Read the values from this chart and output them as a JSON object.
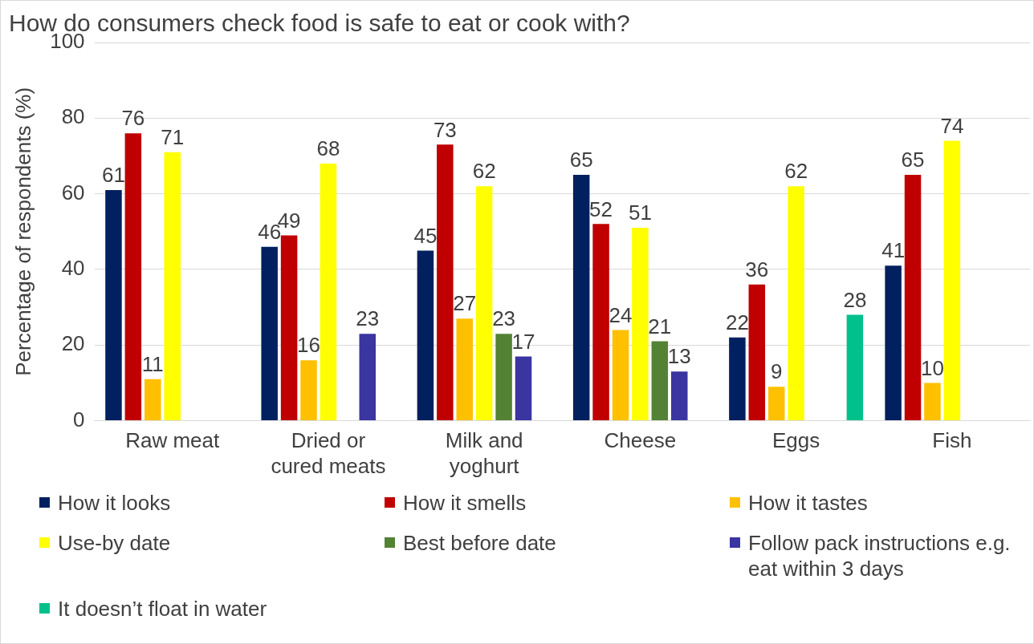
{
  "chart_data": {
    "type": "bar",
    "title": "How do consumers check food is safe to eat or cook with?",
    "ylabel": "Percentage of respondents (%)",
    "categories": [
      "Raw meat",
      "Dried or cured meats",
      "Milk and yoghurt",
      "Cheese",
      "Eggs",
      "Fish"
    ],
    "series": [
      {
        "name": "How it looks",
        "color": "#002060",
        "values": [
          61,
          46,
          45,
          65,
          22,
          41
        ]
      },
      {
        "name": "How it smells",
        "color": "#c00000",
        "values": [
          76,
          49,
          73,
          52,
          36,
          65
        ]
      },
      {
        "name": "How it tastes",
        "color": "#ffc000",
        "values": [
          11,
          16,
          27,
          24,
          9,
          10
        ]
      },
      {
        "name": "Use-by date",
        "color": "#ffff00",
        "values": [
          71,
          68,
          62,
          51,
          62,
          74
        ]
      },
      {
        "name": "Best before date",
        "color": "#548235",
        "values": [
          null,
          null,
          23,
          21,
          null,
          null
        ]
      },
      {
        "name": "Follow pack instructions e.g. eat within 3 days",
        "color": "#3a35a0",
        "values": [
          null,
          23,
          17,
          13,
          null,
          null
        ]
      },
      {
        "name": "It doesn’t float in water",
        "color": "#00c08b",
        "values": [
          null,
          null,
          null,
          null,
          28,
          null
        ]
      }
    ],
    "ylim": [
      0,
      100
    ],
    "yticks": [
      0,
      20,
      40,
      60,
      80,
      100
    ],
    "grid": "y",
    "legend": "bottom",
    "data_labels": true
  }
}
